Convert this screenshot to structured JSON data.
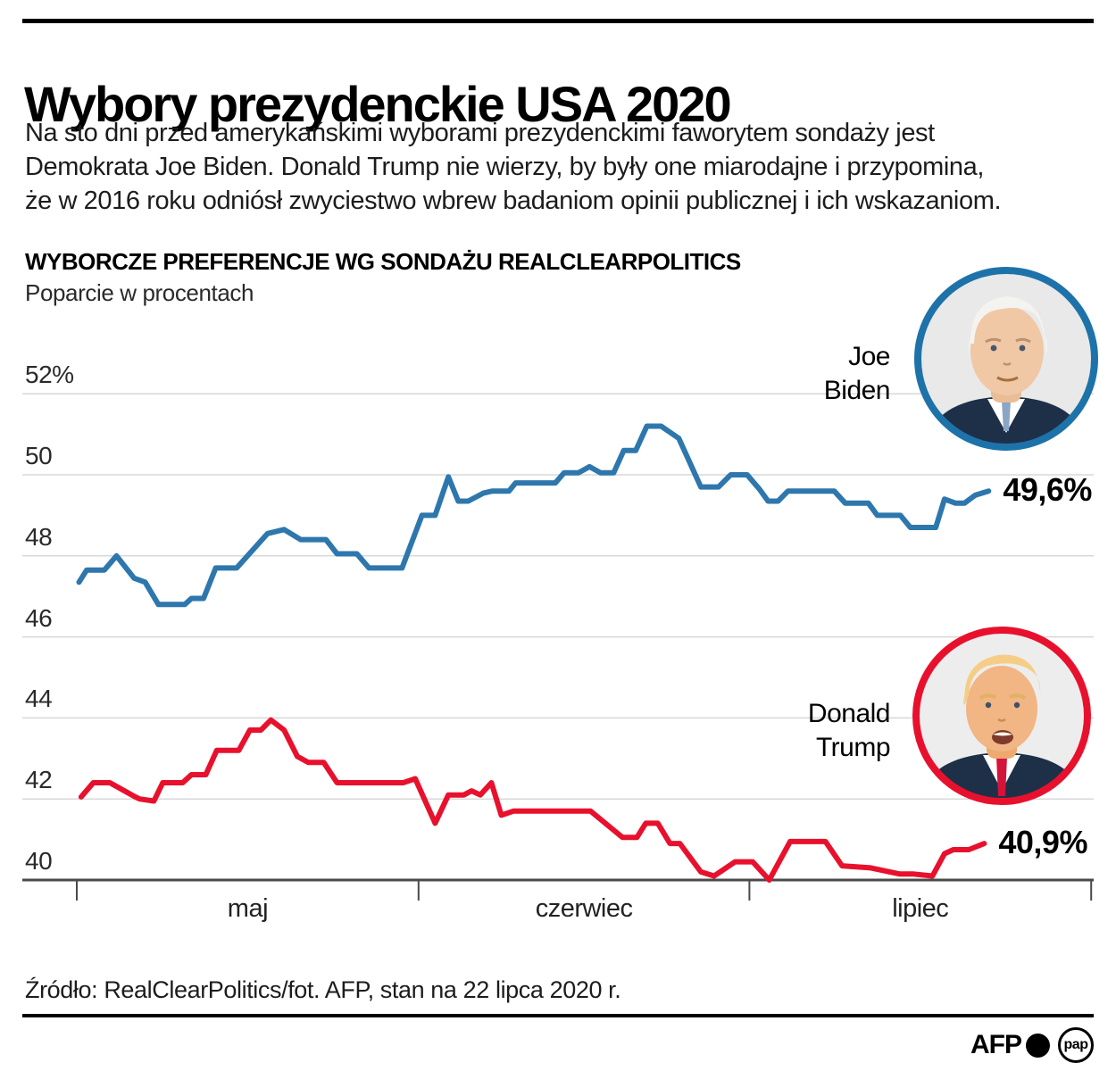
{
  "header": {
    "title": "Wybory prezydenckie USA 2020",
    "intro_lines": [
      "Na sto dni przed amerykańskimi wyborami prezydenckimi faworytem sondaży jest",
      "Demokrata Joe Biden. Donald Trump nie wierzy, by były one miarodajne i przypomina,",
      "że w 2016 roku odniósł zwyciestwo wbrew badaniom opinii publicznej i ich wskazaniom."
    ]
  },
  "chart": {
    "heading": "WYBORCZE PREFERENCJE WG SONDAŻU REALCLEARPOLITICS",
    "subheading": "Poparcie w procentach"
  },
  "annotations": {
    "biden": {
      "line1": "Joe",
      "line2": "Biden"
    },
    "trump": {
      "line1": "Donald",
      "line2": "Trump"
    }
  },
  "chart_data": {
    "type": "line",
    "title": "WYBORCZE PREFERENCJE WG SONDAŻU REALCLEARPOLITICS",
    "ylabel": "Poparcie w procentach",
    "ylim": [
      40,
      52.5
    ],
    "grid": true,
    "y_ticks": [
      {
        "value": 52,
        "label": "52%"
      },
      {
        "value": 50,
        "label": "50"
      },
      {
        "value": 48,
        "label": "48"
      },
      {
        "value": 46,
        "label": "46"
      },
      {
        "value": 44,
        "label": "44"
      },
      {
        "value": 42,
        "label": "42"
      },
      {
        "value": 40,
        "label": "40"
      }
    ],
    "x_unit": "days since 1 maja 2020",
    "x_tick_days": [
      0,
      31,
      61,
      92
    ],
    "months": [
      {
        "label": "maj",
        "span": [
          0,
          31
        ]
      },
      {
        "label": "czerwiec",
        "span": [
          31,
          61
        ]
      },
      {
        "label": "lipiec",
        "span": [
          61,
          92
        ]
      }
    ],
    "series": [
      {
        "name": "Joe Biden",
        "color": "#2e77ad",
        "end_label": "49,6%",
        "end_value": 49.6,
        "points": [
          [
            0.2,
            47.35
          ],
          [
            0.9,
            47.65
          ],
          [
            2.5,
            47.65
          ],
          [
            3.6,
            48.0
          ],
          [
            5.2,
            47.45
          ],
          [
            6.2,
            47.35
          ],
          [
            7.4,
            46.8
          ],
          [
            9.8,
            46.8
          ],
          [
            10.4,
            46.95
          ],
          [
            11.5,
            46.95
          ],
          [
            12.6,
            47.7
          ],
          [
            14.5,
            47.7
          ],
          [
            17.3,
            48.55
          ],
          [
            18.8,
            48.65
          ],
          [
            20.3,
            48.4
          ],
          [
            22.6,
            48.4
          ],
          [
            23.6,
            48.05
          ],
          [
            25.4,
            48.05
          ],
          [
            26.5,
            47.7
          ],
          [
            29.5,
            47.7
          ],
          [
            31.3,
            49.0
          ],
          [
            32.5,
            49.0
          ],
          [
            33.7,
            49.95
          ],
          [
            34.6,
            49.35
          ],
          [
            35.5,
            49.35
          ],
          [
            36.9,
            49.55
          ],
          [
            37.7,
            49.6
          ],
          [
            39.2,
            49.6
          ],
          [
            39.8,
            49.8
          ],
          [
            43.4,
            49.8
          ],
          [
            44.2,
            50.05
          ],
          [
            45.5,
            50.05
          ],
          [
            46.5,
            50.2
          ],
          [
            47.5,
            50.05
          ],
          [
            48.7,
            50.05
          ],
          [
            49.6,
            50.6
          ],
          [
            50.7,
            50.6
          ],
          [
            51.7,
            51.2
          ],
          [
            53.0,
            51.2
          ],
          [
            53.8,
            51.05
          ],
          [
            54.6,
            50.9
          ],
          [
            56.6,
            49.7
          ],
          [
            58.2,
            49.7
          ],
          [
            59.3,
            50.0
          ],
          [
            60.8,
            50.0
          ],
          [
            61.9,
            49.65
          ],
          [
            62.7,
            49.35
          ],
          [
            63.6,
            49.35
          ],
          [
            64.5,
            49.6
          ],
          [
            68.7,
            49.6
          ],
          [
            69.7,
            49.3
          ],
          [
            71.8,
            49.3
          ],
          [
            72.6,
            49.0
          ],
          [
            74.7,
            49.0
          ],
          [
            75.6,
            48.7
          ],
          [
            77.9,
            48.7
          ],
          [
            78.7,
            49.4
          ],
          [
            79.7,
            49.3
          ],
          [
            80.5,
            49.3
          ],
          [
            81.5,
            49.5
          ],
          [
            82.7,
            49.6
          ]
        ]
      },
      {
        "name": "Donald Trump",
        "color": "#e8112d",
        "end_label": "40,9%",
        "end_value": 40.9,
        "points": [
          [
            0.4,
            42.05
          ],
          [
            1.5,
            42.4
          ],
          [
            3.0,
            42.4
          ],
          [
            5.3,
            42.05
          ],
          [
            5.7,
            42.0
          ],
          [
            7.0,
            41.95
          ],
          [
            7.8,
            42.4
          ],
          [
            9.6,
            42.4
          ],
          [
            10.4,
            42.6
          ],
          [
            11.7,
            42.6
          ],
          [
            12.7,
            43.2
          ],
          [
            14.7,
            43.2
          ],
          [
            15.7,
            43.7
          ],
          [
            16.7,
            43.7
          ],
          [
            17.6,
            43.95
          ],
          [
            18.8,
            43.7
          ],
          [
            20.0,
            43.05
          ],
          [
            21.0,
            42.9
          ],
          [
            22.4,
            42.9
          ],
          [
            23.6,
            42.4
          ],
          [
            29.6,
            42.4
          ],
          [
            30.7,
            42.5
          ],
          [
            32.5,
            41.4
          ],
          [
            33.7,
            42.1
          ],
          [
            35.1,
            42.1
          ],
          [
            35.8,
            42.2
          ],
          [
            36.6,
            42.1
          ],
          [
            37.6,
            42.4
          ],
          [
            38.5,
            41.6
          ],
          [
            39.6,
            41.7
          ],
          [
            46.6,
            41.7
          ],
          [
            49.5,
            41.05
          ],
          [
            50.8,
            41.05
          ],
          [
            51.6,
            41.4
          ],
          [
            52.7,
            41.4
          ],
          [
            53.8,
            40.9
          ],
          [
            54.7,
            40.9
          ],
          [
            56.6,
            40.2
          ],
          [
            57.8,
            40.1
          ],
          [
            59.7,
            40.45
          ],
          [
            61.3,
            40.45
          ],
          [
            62.8,
            40.0
          ],
          [
            64.7,
            40.95
          ],
          [
            67.9,
            40.95
          ],
          [
            69.4,
            40.35
          ],
          [
            72.0,
            40.3
          ],
          [
            74.6,
            40.15
          ],
          [
            75.8,
            40.15
          ],
          [
            77.6,
            40.1
          ],
          [
            78.7,
            40.65
          ],
          [
            79.5,
            40.75
          ],
          [
            80.9,
            40.75
          ],
          [
            82.3,
            40.9
          ]
        ]
      }
    ],
    "legend_position": "right-of-lines"
  },
  "footer": {
    "source": "Źródło: RealClearPolitics/fot. AFP, stan na 22 lipca 2020 r.",
    "logos": {
      "afp": "AFP",
      "pap": "pap"
    }
  }
}
